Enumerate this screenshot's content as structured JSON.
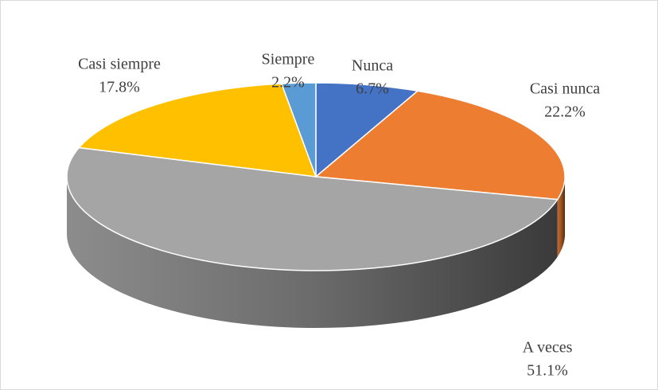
{
  "chart_data": {
    "type": "pie3d",
    "categories": [
      "Nunca",
      "Casi nunca",
      "A veces",
      "Casi siempre",
      "Siempre"
    ],
    "values": [
      6.7,
      22.2,
      51.1,
      17.8,
      2.2
    ],
    "value_labels": [
      "6.7%",
      "22.2%",
      "51.1%",
      "17.8%",
      "2.2%"
    ],
    "colors": [
      "#4472c4",
      "#ed7d31",
      "#a5a5a5",
      "#ffc000",
      "#5b9bd5"
    ]
  }
}
